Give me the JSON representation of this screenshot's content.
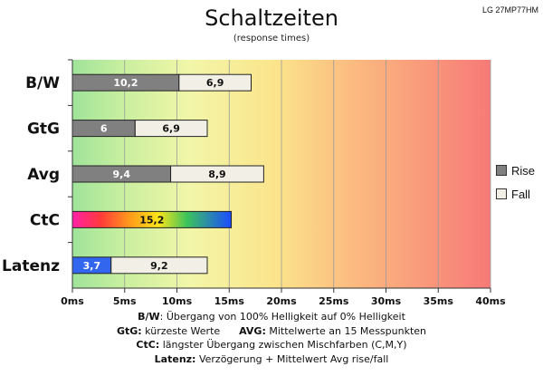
{
  "title": "Schaltzeiten",
  "subtitle": "(response times)",
  "model": "LG 27MP77HM",
  "colors": {
    "rise": "#808080",
    "fall": "#f2f0e6",
    "latency_rise": "#3366ee",
    "bar_border": "#222222"
  },
  "chart_data": {
    "type": "bar",
    "orientation": "horizontal",
    "stacked": true,
    "categories": [
      "B/W",
      "GtG",
      "Avg",
      "CtC",
      "Latenz"
    ],
    "series": [
      {
        "name": "Rise",
        "values": [
          10.2,
          6,
          9.4,
          15.2,
          3.7
        ],
        "labels": [
          "10,2",
          "6",
          "9,4",
          "15,2",
          "3,7"
        ]
      },
      {
        "name": "Fall",
        "values": [
          6.9,
          6.9,
          8.9,
          null,
          9.2
        ],
        "labels": [
          "6,9",
          "6,9",
          "8,9",
          "",
          "9,2"
        ]
      }
    ],
    "xlim": [
      0,
      40
    ],
    "xticks": [
      0,
      5,
      10,
      15,
      20,
      25,
      30,
      35,
      40
    ],
    "xtick_labels": [
      "0ms",
      "5ms",
      "10ms",
      "15ms",
      "20ms",
      "25ms",
      "30ms",
      "35ms",
      "40ms"
    ],
    "grid": true,
    "legend_position": "right"
  },
  "notes": [
    {
      "key": "B/W",
      "text": ":  Übergang von 100% Helligkeit auf 0% Helligkeit"
    },
    {
      "key": "GtG:",
      "text": " kürzeste  Werte",
      "key2": "AVG:",
      "text2": " Mittelwerte  an 15 Messpunkten"
    },
    {
      "key": "CtC:",
      "text": " längster Übergang  zwischen Mischfarben (C,M,Y)"
    },
    {
      "key": "Latenz:",
      "text": " Verzögerung  + Mittelwert Avg rise/fall"
    }
  ]
}
